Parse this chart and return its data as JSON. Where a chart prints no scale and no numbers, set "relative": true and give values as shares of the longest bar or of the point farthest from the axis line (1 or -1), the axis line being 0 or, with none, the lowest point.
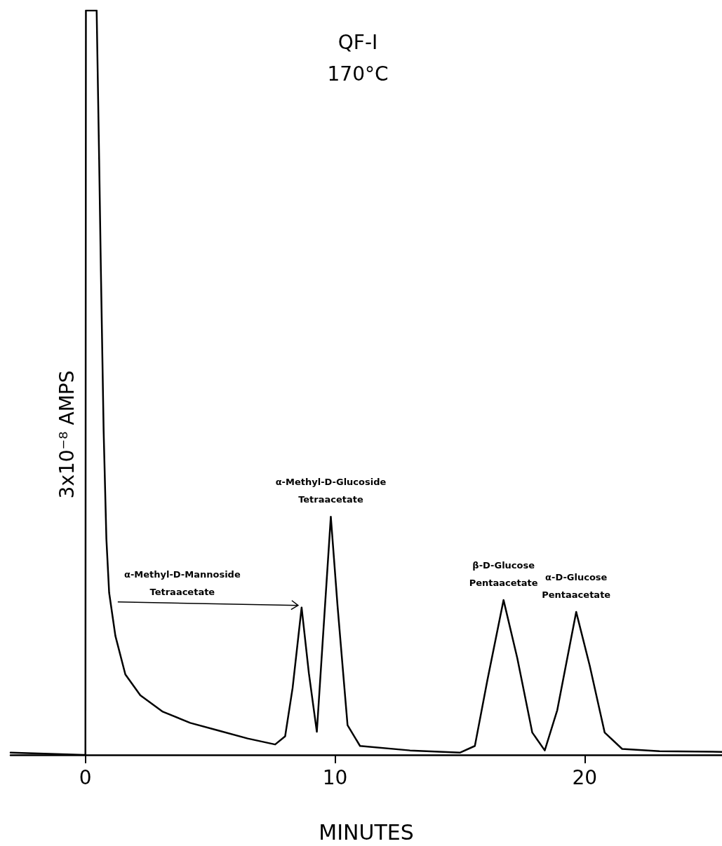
{
  "chart_data": {
    "type": "line",
    "relative": true,
    "color": "#000000",
    "xlabel": "MINUTES",
    "ylabel": "3x10⁻⁸ AMPS",
    "x": [
      -3,
      -0.1,
      0,
      0.02,
      0.45,
      0.55,
      0.62,
      0.73,
      0.84,
      0.95,
      1.2,
      1.6,
      2.2,
      3.1,
      4.2,
      5.3,
      6.5,
      7.6,
      8.0,
      8.3,
      8.66,
      8.95,
      9.27,
      9.5,
      9.83,
      10.1,
      10.5,
      11,
      13,
      15,
      15.6,
      16.1,
      16.75,
      17.3,
      17.9,
      18.4,
      18.9,
      19.66,
      20.2,
      20.8,
      21.5,
      23,
      25.5
    ],
    "values": [
      0.003,
      0,
      0,
      1,
      1,
      0.8,
      0.65,
      0.435,
      0.29,
      0.218,
      0.16,
      0.108,
      0.08,
      0.058,
      0.043,
      0.033,
      0.022,
      0.014,
      0.025,
      0.09,
      0.198,
      0.11,
      0.031,
      0.15,
      0.32,
      0.2,
      0.04,
      0.012,
      0.006,
      0.003,
      0.012,
      0.1,
      0.208,
      0.13,
      0.03,
      0.006,
      0.06,
      0.192,
      0.12,
      0.03,
      0.008,
      0.005,
      0.004
    ],
    "xlim": [
      -3,
      25.5
    ],
    "xticks": [
      0,
      10,
      20
    ],
    "annotations": [
      "QF-I",
      "170°C",
      {
        "text": "α-Methyl-D-Mannoside\nTetraacetate",
        "x": 8.66,
        "y": 0.198
      },
      {
        "text": "α-Methyl-D-Glucoside\nTetraacetate",
        "x": 9.83,
        "y": 0.32
      },
      {
        "text": "β-D-Glucose\nPentaacetate",
        "x": 16.75,
        "y": 0.208
      },
      {
        "text": "α-D-Glucose\nPentaacetate",
        "x": 19.66,
        "y": 0.192
      }
    ]
  }
}
